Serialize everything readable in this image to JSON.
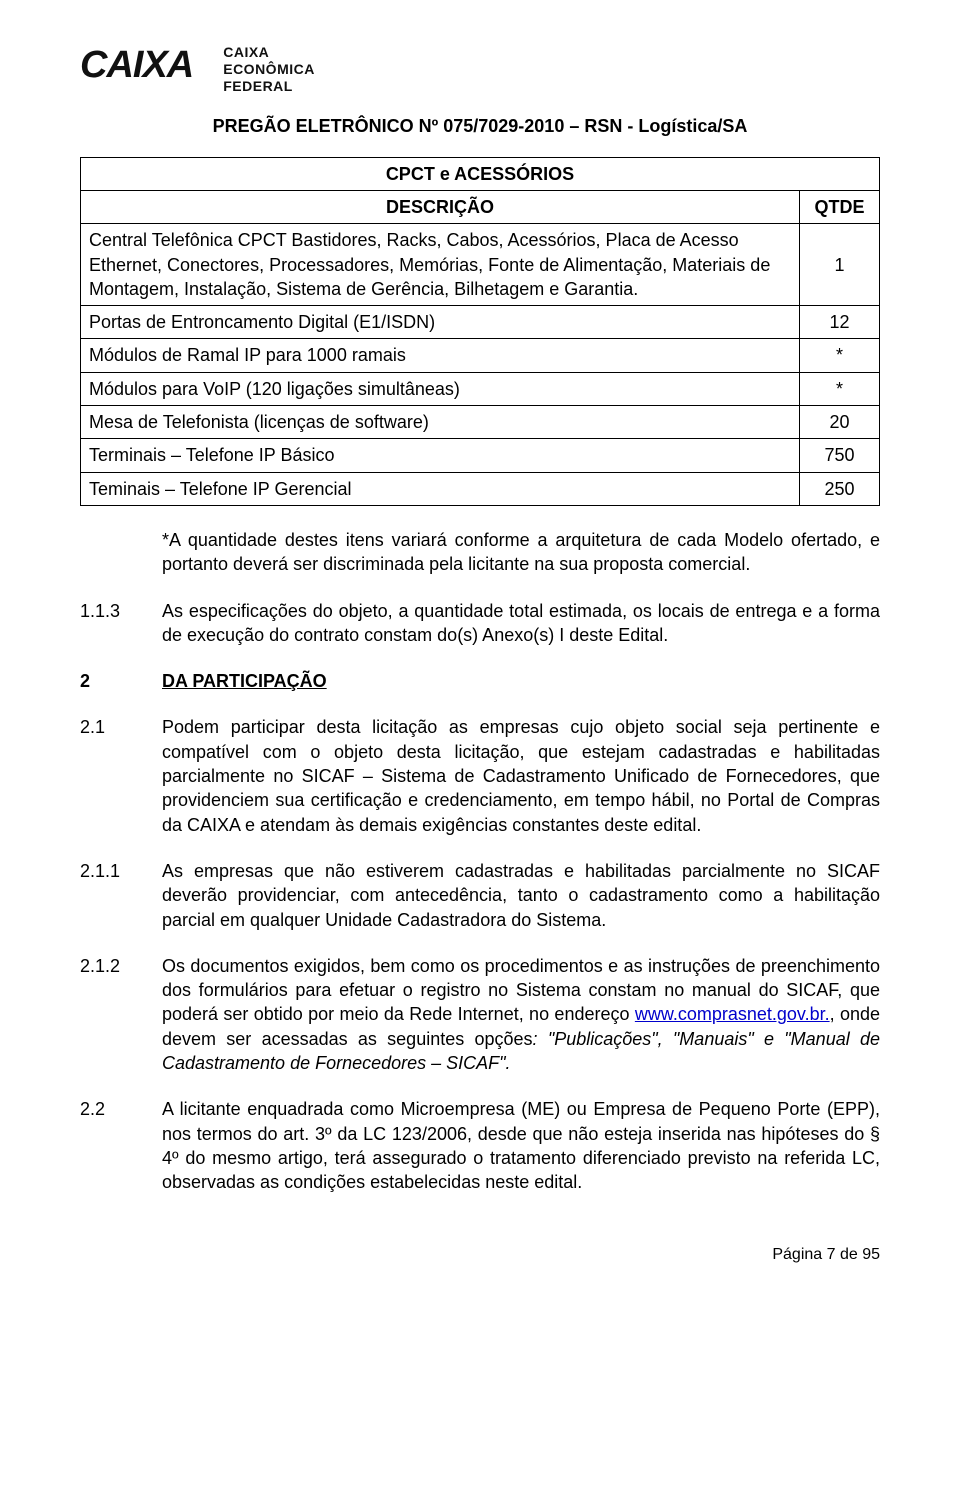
{
  "header": {
    "logo_main": "CAIXA",
    "logo_sub_line1": "CAIXA",
    "logo_sub_line2": "ECONÔMICA",
    "logo_sub_line3": "FEDERAL"
  },
  "doc_title": "PREGÃO ELETRÔNICO Nº 075/7029-2010 – RSN - Logística/SA",
  "table": {
    "title": "CPCT e ACESSÓRIOS",
    "col_desc": "DESCRIÇÃO",
    "col_qtde": "QTDE",
    "rows": [
      {
        "desc": "Central Telefônica CPCT Bastidores, Racks, Cabos, Acessórios, Placa de Acesso Ethernet, Conectores, Processadores, Memórias, Fonte de Alimentação, Materiais de Montagem, Instalação, Sistema de Gerência, Bilhetagem e Garantia.",
        "qtde": "1"
      },
      {
        "desc": "Portas de Entroncamento Digital (E1/ISDN)",
        "qtde": "12"
      },
      {
        "desc": "Módulos de Ramal IP para 1000 ramais",
        "qtde": "*"
      },
      {
        "desc": "Módulos para VoIP (120 ligações simultâneas)",
        "qtde": "*"
      },
      {
        "desc": "Mesa de Telefonista (licenças de software)",
        "qtde": "20"
      },
      {
        "desc": "Terminais – Telefone IP Básico",
        "qtde": "750"
      },
      {
        "desc": "Teminais – Telefone IP Gerencial",
        "qtde": "250"
      }
    ]
  },
  "note_asterisk": "*A quantidade destes itens variará conforme a arquitetura de cada Modelo ofertado, e portanto deverá ser discriminada pela licitante na sua proposta comercial.",
  "paragraphs": [
    {
      "num": "1.1.3",
      "text": "As especificações do objeto, a quantidade total estimada, os locais de entrega e a forma de execução do contrato constam do(s) Anexo(s) I deste Edital."
    }
  ],
  "section2": {
    "num": "2",
    "title": "DA PARTICIPAÇÃO"
  },
  "p21": {
    "num": "2.1",
    "text": "Podem participar desta licitação as empresas cujo objeto social seja pertinente e compatível com o objeto desta licitação, que estejam cadastradas e habilitadas parcialmente no SICAF – Sistema de Cadastramento Unificado de Fornecedores, que providenciem sua certificação e credenciamento, em tempo hábil, no Portal de Compras da CAIXA e atendam às demais exigências constantes deste edital."
  },
  "p211": {
    "num": "2.1.1",
    "text": "As empresas que não estiverem cadastradas e habilitadas parcialmente no SICAF deverão providenciar, com antecedência, tanto o cadastramento como a habilitação parcial em qualquer Unidade Cadastradora do Sistema."
  },
  "p212": {
    "num": "2.1.2",
    "pre": "Os documentos exigidos, bem como os procedimentos e as instruções de preenchimento dos formulários para efetuar o registro no Sistema constam no manual do SICAF, que poderá ser obtido por meio da Rede Internet, no endereço ",
    "link_text": "www.comprasnet.gov.br.",
    "mid": ", onde devem ser acessadas as seguintes opções",
    "ital": ": \"Publicações\", \"Manuais\" e \"Manual de Cadastramento de Fornecedores – SICAF\"."
  },
  "p22": {
    "num": "2.2",
    "text": "A licitante enquadrada como Microempresa (ME) ou Empresa de Pequeno Porte (EPP), nos termos do art. 3º da LC 123/2006, desde que não esteja inserida nas hipóteses do § 4º do mesmo artigo, terá assegurado o tratamento diferenciado previsto na referida LC, observadas as condições estabelecidas neste edital."
  },
  "footer": "Página 7 de 95"
}
